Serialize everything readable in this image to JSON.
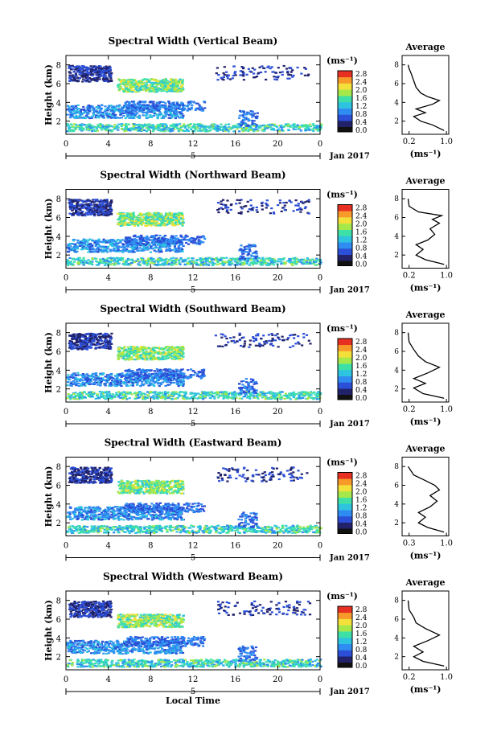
{
  "chart_data": {
    "type": "heatmap",
    "panels": [
      {
        "title": "Spectral Width (Vertical Beam)",
        "ylabel": "Height (km)",
        "yticks": [
          "2",
          "4",
          "6",
          "8"
        ],
        "xticks": [
          "0",
          "4",
          "8",
          "12",
          "16",
          "20",
          "0"
        ],
        "date_tick": "5",
        "date_label": "Jan 2017",
        "colorbar": {
          "unit": "(ms⁻¹)",
          "ticks": [
            "2.8",
            "2.4",
            "2.0",
            "1.6",
            "1.2",
            "0.8",
            "0.4",
            "0.0"
          ]
        },
        "average": {
          "title": "Average",
          "xlabel": "(ms⁻¹)",
          "xticks": [
            "0.2",
            "1.0"
          ],
          "yticks": [
            "2",
            "4",
            "6",
            "8"
          ],
          "profile": [
            [
              0.95,
              1.0
            ],
            [
              0.7,
              1.6
            ],
            [
              0.45,
              2.0
            ],
            [
              0.3,
              2.5
            ],
            [
              0.55,
              2.9
            ],
            [
              0.35,
              3.3
            ],
            [
              0.7,
              3.8
            ],
            [
              0.85,
              4.2
            ],
            [
              0.6,
              4.6
            ],
            [
              0.45,
              5.0
            ],
            [
              0.35,
              5.6
            ],
            [
              0.3,
              6.3
            ],
            [
              0.25,
              7.0
            ],
            [
              0.2,
              7.6
            ],
            [
              0.18,
              8.0
            ]
          ]
        }
      },
      {
        "title": "Spectral Width (Northward Beam)",
        "ylabel": "Height (km)",
        "yticks": [
          "2",
          "4",
          "6",
          "8"
        ],
        "xticks": [
          "0",
          "4",
          "8",
          "12",
          "16",
          "20",
          "0"
        ],
        "date_tick": "5",
        "date_label": "Jan 2017",
        "colorbar": {
          "unit": "(ms⁻¹)",
          "ticks": [
            "2.8",
            "2.4",
            "2.0",
            "1.6",
            "1.2",
            "0.8",
            "0.4",
            "0.0"
          ]
        },
        "average": {
          "title": "Average",
          "xlabel": "(ms⁻¹)",
          "xticks": [
            "0.2",
            "1.0"
          ],
          "yticks": [
            "2",
            "4",
            "6",
            "8"
          ],
          "profile": [
            [
              0.95,
              1.0
            ],
            [
              0.55,
              1.5
            ],
            [
              0.35,
              2.0
            ],
            [
              0.5,
              2.6
            ],
            [
              0.35,
              3.1
            ],
            [
              0.6,
              3.6
            ],
            [
              0.75,
              4.2
            ],
            [
              0.65,
              4.8
            ],
            [
              0.85,
              5.4
            ],
            [
              0.7,
              5.8
            ],
            [
              0.9,
              6.2
            ],
            [
              0.4,
              6.6
            ],
            [
              0.2,
              7.2
            ],
            [
              0.18,
              8.0
            ]
          ]
        }
      },
      {
        "title": "Spectral Width (Southward Beam)",
        "ylabel": "Height (km)",
        "yticks": [
          "2",
          "4",
          "6",
          "8"
        ],
        "xticks": [
          "0",
          "4",
          "8",
          "12",
          "16",
          "20",
          "0"
        ],
        "date_tick": "5",
        "date_label": "Jan 2017",
        "colorbar": {
          "unit": "(ms⁻¹)",
          "ticks": [
            "2.8",
            "2.4",
            "2.0",
            "1.6",
            "1.2",
            "0.8",
            "0.4",
            "0.0"
          ]
        },
        "average": {
          "title": "Average",
          "xlabel": "(ms⁻¹)",
          "xticks": [
            "0.2",
            "1.0"
          ],
          "yticks": [
            "2",
            "4",
            "6",
            "8"
          ],
          "profile": [
            [
              0.95,
              1.0
            ],
            [
              0.5,
              1.5
            ],
            [
              0.3,
              2.1
            ],
            [
              0.55,
              2.6
            ],
            [
              0.3,
              3.1
            ],
            [
              0.6,
              3.7
            ],
            [
              0.85,
              4.3
            ],
            [
              0.55,
              4.9
            ],
            [
              0.4,
              5.5
            ],
            [
              0.3,
              6.2
            ],
            [
              0.2,
              7.0
            ],
            [
              0.18,
              8.0
            ]
          ]
        }
      },
      {
        "title": "Spectral Width (Eastward Beam)",
        "ylabel": "Height (km)",
        "yticks": [
          "2",
          "4",
          "6",
          "8"
        ],
        "xticks": [
          "0",
          "4",
          "8",
          "12",
          "16",
          "20",
          "0"
        ],
        "date_tick": "5",
        "date_label": "Jan 2017",
        "colorbar": {
          "unit": "(ms⁻¹)",
          "ticks": [
            "2.8",
            "2.4",
            "2.0",
            "1.6",
            "1.2",
            "0.8",
            "0.4",
            "0.0"
          ]
        },
        "average": {
          "title": "Average",
          "xlabel": "(ms⁻¹)",
          "xticks": [
            "0.3",
            "1.0"
          ],
          "yticks": [
            "2",
            "4",
            "6",
            "8"
          ],
          "profile": [
            [
              0.95,
              1.0
            ],
            [
              0.6,
              1.5
            ],
            [
              0.4,
              2.0
            ],
            [
              0.55,
              2.6
            ],
            [
              0.4,
              3.1
            ],
            [
              0.65,
              3.7
            ],
            [
              0.8,
              4.3
            ],
            [
              0.65,
              4.9
            ],
            [
              0.85,
              5.5
            ],
            [
              0.75,
              6.0
            ],
            [
              0.55,
              6.5
            ],
            [
              0.3,
              7.1
            ],
            [
              0.18,
              8.0
            ]
          ]
        }
      },
      {
        "title": "Spectral Width (Westward Beam)",
        "ylabel": "Height (km)",
        "yticks": [
          "2",
          "4",
          "6",
          "8"
        ],
        "xticks": [
          "0",
          "4",
          "8",
          "12",
          "16",
          "20",
          "0"
        ],
        "date_tick": "5",
        "date_label": "Jan 2017",
        "xlabel": "Local Time",
        "colorbar": {
          "unit": "(ms⁻¹)",
          "ticks": [
            "2.8",
            "2.4",
            "2.0",
            "1.6",
            "1.2",
            "0.8",
            "0.4",
            "0.0"
          ]
        },
        "average": {
          "title": "Average",
          "xlabel": "(ms⁻¹)",
          "xticks": [
            "0.2",
            "1.0"
          ],
          "yticks": [
            "2",
            "4",
            "6",
            "8"
          ],
          "profile": [
            [
              0.95,
              1.0
            ],
            [
              0.5,
              1.5
            ],
            [
              0.3,
              2.0
            ],
            [
              0.5,
              2.5
            ],
            [
              0.3,
              3.1
            ],
            [
              0.6,
              3.7
            ],
            [
              0.85,
              4.3
            ],
            [
              0.55,
              5.0
            ],
            [
              0.35,
              5.6
            ],
            [
              0.3,
              6.2
            ],
            [
              0.2,
              7.0
            ],
            [
              0.18,
              8.0
            ]
          ]
        }
      }
    ],
    "colorscale": [
      "#22226b",
      "#2b4fd6",
      "#2f8df2",
      "#2ec4e0",
      "#3fe0a8",
      "#a6e84a",
      "#f4e03a",
      "#f79a2a",
      "#e83022"
    ]
  }
}
